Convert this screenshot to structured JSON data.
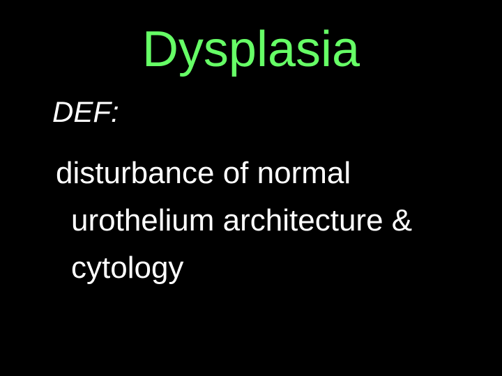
{
  "slide": {
    "title": "Dysplasia",
    "def_label": "DEF:",
    "body_line1": "disturbance of normal",
    "body_line2": "urothelium architecture &",
    "body_line3": "cytology",
    "colors": {
      "background": "#000000",
      "title": "#66ff66",
      "text": "#ffffff"
    },
    "typography": {
      "title_fontsize": 72,
      "def_fontsize": 42,
      "body_fontsize": 44,
      "font_family": "Arial"
    }
  }
}
